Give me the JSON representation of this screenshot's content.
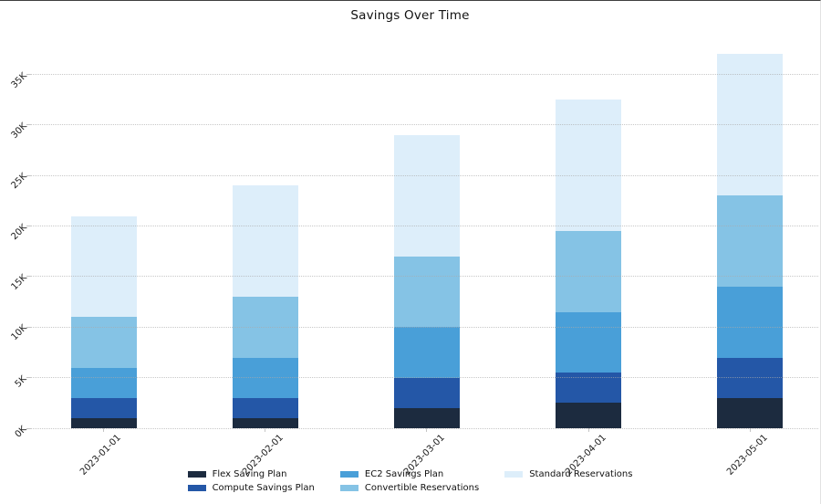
{
  "title": "Savings Over Time",
  "chart_data": {
    "type": "bar",
    "stacked": true,
    "title": "Savings Over Time",
    "categories": [
      "2023-01-01",
      "2023-02-01",
      "2023-03-01",
      "2023-04-01",
      "2023-05-01"
    ],
    "series": [
      {
        "name": "Flex Saving Plan",
        "color": "#1c2b3f",
        "values": [
          1000,
          1000,
          2000,
          2500,
          3000
        ]
      },
      {
        "name": "Compute Savings Plan",
        "color": "#2457a7",
        "values": [
          2000,
          2000,
          3000,
          3000,
          4000
        ]
      },
      {
        "name": "EC2 Savings Plan",
        "color": "#499fd8",
        "values": [
          3000,
          4000,
          5000,
          6000,
          7000
        ]
      },
      {
        "name": "Convertible Reservations",
        "color": "#85c3e5",
        "values": [
          5000,
          6000,
          7000,
          8000,
          9000
        ]
      },
      {
        "name": "Standard Reservations",
        "color": "#ddeefa",
        "values": [
          10000,
          11000,
          12000,
          13000,
          14000
        ]
      }
    ],
    "ylim": [
      0,
      37500
    ],
    "yticks": [
      {
        "value": 0,
        "label": "0K"
      },
      {
        "value": 5000,
        "label": "5K"
      },
      {
        "value": 10000,
        "label": "10K"
      },
      {
        "value": 15000,
        "label": "15K"
      },
      {
        "value": 20000,
        "label": "20K"
      },
      {
        "value": 25000,
        "label": "25K"
      },
      {
        "value": 30000,
        "label": "30K"
      },
      {
        "value": 35000,
        "label": "35K"
      }
    ],
    "grid": {
      "horizontal": true,
      "style": "dotted",
      "color": "#cccccc",
      "above_bars": true
    },
    "x_tick_rotation": 45,
    "y_tick_rotation": 45,
    "legend": {
      "position": "bottom",
      "columns": 3,
      "fill": "column-major"
    }
  }
}
